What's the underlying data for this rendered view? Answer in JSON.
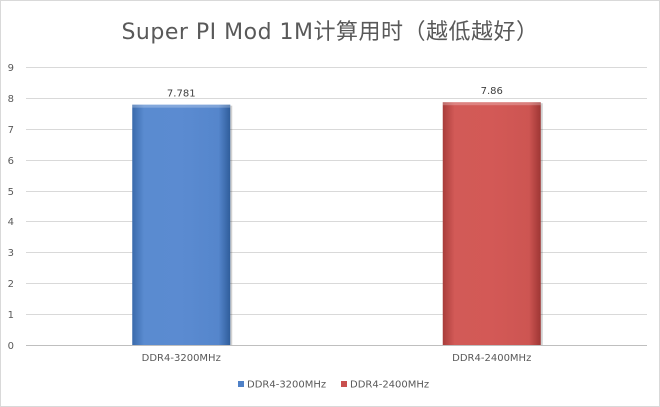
{
  "chart_data": {
    "type": "bar",
    "title": "Super PI Mod 1M计算用时（越低越好）",
    "categories": [
      "DDR4-3200MHz",
      "DDR4-2400MHz"
    ],
    "values": [
      7.781,
      7.86
    ],
    "value_labels": [
      "7.781",
      "7.86"
    ],
    "colors": [
      "#4f81c7",
      "#c9504e"
    ],
    "ylim": [
      0,
      9
    ],
    "yticks": [
      0,
      1,
      2,
      3,
      4,
      5,
      6,
      7,
      8,
      9
    ],
    "grid": true,
    "legend": {
      "position": "bottom",
      "entries": [
        {
          "label": "DDR4-3200MHz",
          "color": "#4f81c7"
        },
        {
          "label": "DDR4-2400MHz",
          "color": "#c9504e"
        }
      ]
    }
  }
}
